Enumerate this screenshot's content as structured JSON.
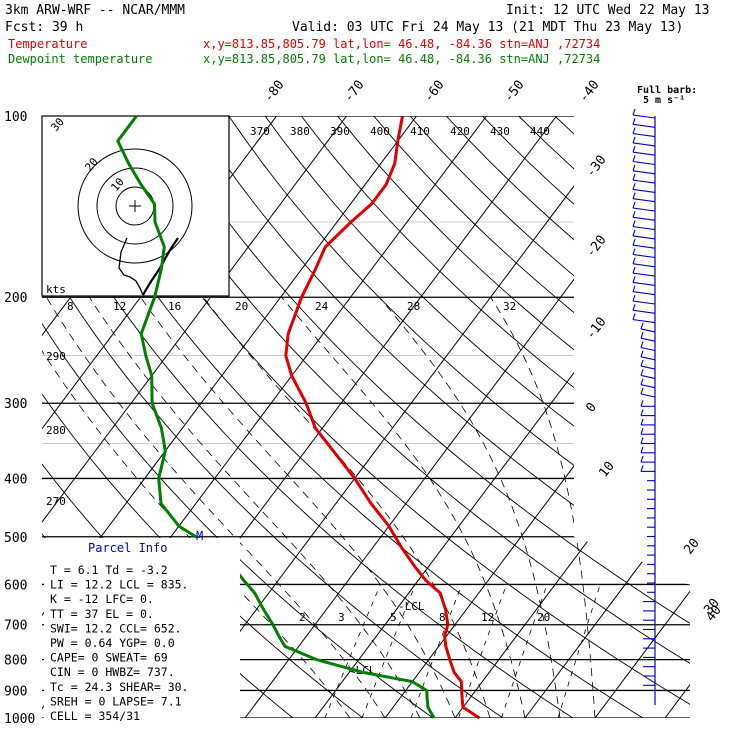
{
  "header": {
    "model": "3km ARW-WRF -- NCAR/MMM",
    "init": "Init: 12 UTC Wed 22 May 13",
    "fcst": "Fcst:    39 h",
    "valid": "Valid: 03 UTC Fri 24 May 13 (21 MDT Thu 23 May 13)",
    "temp_label": "Temperature",
    "temp_loc": "x,y=813.85,805.79   lat,lon= 46.48, -84.36   stn=ANJ ,72734",
    "dew_label": "Dewpoint temperature",
    "dew_loc": "x,y=813.85,805.79   lat,lon= 46.48, -84.36   stn=ANJ ,72734",
    "barb_label_1": "Full barb:",
    "barb_label_2": "5 m s⁻¹"
  },
  "colors": {
    "temperature": "#e00000",
    "dewpoint": "#008000",
    "parcel_title": "#0000cc",
    "barbs": "#0000cc"
  },
  "chart_data": {
    "type": "line",
    "title": "",
    "ylabel": "Pressure (hPa)",
    "y_scale": "log",
    "ylim": [
      1000,
      100
    ],
    "pressure_ticks": [
      "100",
      "200",
      "300",
      "400",
      "500",
      "600",
      "700",
      "800",
      "900",
      "1000"
    ],
    "temp_ticks": [
      "-80",
      "-70",
      "-60",
      "-50",
      "-40",
      "-30",
      "-20",
      "-10",
      "0",
      "10",
      "20",
      "30",
      "40"
    ],
    "theta_labels": [
      "370",
      "380",
      "390",
      "400",
      "410",
      "420",
      "430",
      "440"
    ],
    "theta_low_labels": [
      "290",
      "280",
      "270"
    ],
    "mixing_ratio_labels": [
      "2",
      "3",
      "5",
      "8",
      "12",
      "20"
    ],
    "hodograph_ticks": [
      "8",
      "12",
      "16",
      "20",
      "24",
      "28",
      "32"
    ],
    "hodograph_labels": {
      "kts": "kts",
      "ring_30": "30",
      "ring_20": "20",
      "ring_10": "10"
    },
    "lcl_labels": [
      "LCL",
      "LCL"
    ],
    "series": [
      {
        "name": "Temperature",
        "pressure": [
          1000,
          960,
          930,
          900,
          870,
          840,
          800,
          760,
          730,
          700,
          660,
          620,
          590,
          560,
          520,
          480,
          440,
          400,
          360,
          330,
          300,
          270,
          250,
          230,
          200,
          180,
          165,
          150,
          140,
          130,
          120,
          110,
          100
        ],
        "values": [
          13.5,
          10,
          9,
          8,
          7,
          5,
          3,
          1,
          -0.3,
          -1,
          -3,
          -5.5,
          -9,
          -12,
          -16,
          -20,
          -25,
          -30,
          -36,
          -41,
          -45,
          -50,
          -53,
          -55,
          -57,
          -58,
          -59,
          -58,
          -57,
          -57,
          -58,
          -60,
          -62
        ]
      },
      {
        "name": "Dewpoint temperature",
        "pressure": [
          1000,
          960,
          930,
          900,
          870,
          840,
          800,
          760,
          730,
          700,
          660,
          620,
          590,
          560,
          520,
          480,
          440,
          400,
          360,
          330,
          300,
          270,
          250,
          230,
          200,
          180,
          165,
          150,
          140,
          130,
          120,
          110,
          100
        ],
        "values": [
          7,
          5,
          4,
          3,
          0,
          -8,
          -16,
          -22,
          -24,
          -26,
          -29,
          -32,
          -35,
          -38,
          -43,
          -50,
          -55,
          -58,
          -60,
          -63,
          -67,
          -70,
          -73,
          -76,
          -78,
          -80,
          -82,
          -86,
          -88,
          -92,
          -96,
          -100,
          -100
        ]
      }
    ]
  },
  "parcel": {
    "title": "Parcel Info",
    "rows": [
      "T  =    6.1  Td = -3.2",
      "LI =   12.2  LCL = 835.",
      "K  =    -12  LFC=    0.",
      "TT =     37  EL =    0.",
      "SWI=   12.2  CCL= 652.",
      "PW =   0.64  YGP=   0.0",
      "CAPE=     0  SWEAT=  69",
      "CIN =     0  HWBZ= 737.",
      "Tc =   24.3  SHEAR=  30.",
      "SREH =    0  LAPSE=  7.1",
      "CELL = 354/31"
    ],
    "marker": "M"
  }
}
